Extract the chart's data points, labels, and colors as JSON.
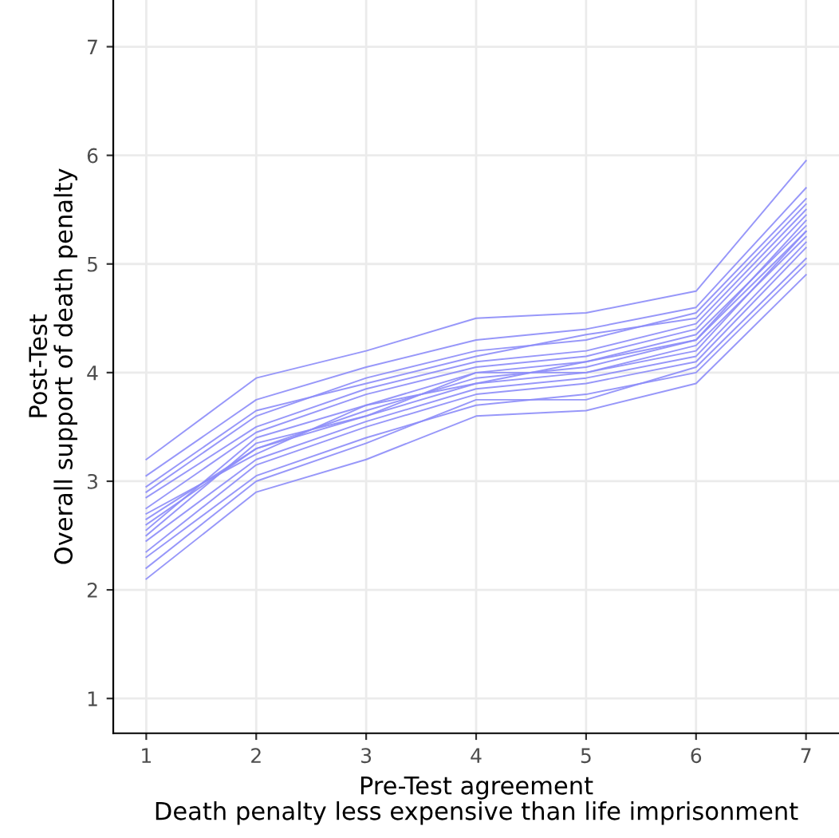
{
  "chart_data": {
    "type": "line",
    "xlabel": "Pre-Test agreement\nDeath penalty less expensive than life imprisonment",
    "ylabel": "Post-Test\nOverall support of death penalty",
    "x": [
      1,
      2,
      3,
      4,
      5,
      6,
      7
    ],
    "xlim": [
      0.7,
      7.3
    ],
    "xticks": [
      1,
      2,
      3,
      4,
      5,
      6,
      7
    ],
    "ylim": [
      0.68,
      7.43
    ],
    "yticks": [
      1,
      2,
      3,
      4,
      5,
      6,
      7
    ],
    "grid": true,
    "legend": false,
    "marker": "none",
    "line_style": "solid",
    "series": [
      {
        "color": "#8c8cf8",
        "values": [
          2.6,
          3.3,
          3.65,
          3.95,
          4.05,
          4.3,
          5.3
        ]
      },
      {
        "color": "#8c8cf8",
        "values": [
          2.1,
          2.9,
          3.2,
          3.6,
          3.65,
          3.9,
          4.9
        ]
      },
      {
        "color": "#8c8cf8",
        "values": [
          3.2,
          3.95,
          4.2,
          4.5,
          4.55,
          4.75,
          5.95
        ]
      },
      {
        "color": "#8c8cf8",
        "values": [
          2.3,
          3.05,
          3.4,
          3.7,
          3.8,
          4.0,
          5.0
        ]
      },
      {
        "color": "#8c8cf8",
        "values": [
          2.9,
          3.6,
          3.95,
          4.2,
          4.3,
          4.55,
          5.6
        ]
      },
      {
        "color": "#8c8cf8",
        "values": [
          2.45,
          3.2,
          3.55,
          3.85,
          3.95,
          4.15,
          5.2
        ]
      },
      {
        "color": "#8c8cf8",
        "values": [
          2.75,
          3.45,
          3.8,
          4.05,
          4.15,
          4.4,
          5.45
        ]
      },
      {
        "color": "#8c8cf8",
        "values": [
          2.5,
          3.35,
          3.6,
          3.9,
          4.0,
          4.25,
          5.25
        ]
      },
      {
        "color": "#8c8cf8",
        "values": [
          2.7,
          3.25,
          3.7,
          4.0,
          4.1,
          4.35,
          5.35
        ]
      },
      {
        "color": "#8c8cf8",
        "values": [
          3.05,
          3.75,
          4.05,
          4.3,
          4.4,
          4.6,
          5.7
        ]
      },
      {
        "color": "#8c8cf8",
        "values": [
          2.2,
          3.0,
          3.35,
          3.75,
          3.75,
          4.05,
          5.05
        ]
      },
      {
        "color": "#8c8cf8",
        "values": [
          2.55,
          3.4,
          3.7,
          3.9,
          4.1,
          4.3,
          5.4
        ]
      },
      {
        "color": "#8c8cf8",
        "values": [
          2.85,
          3.5,
          3.85,
          4.1,
          4.2,
          4.45,
          5.5
        ]
      },
      {
        "color": "#8c8cf8",
        "values": [
          2.35,
          3.15,
          3.5,
          3.8,
          3.9,
          4.1,
          5.15
        ]
      },
      {
        "color": "#8c8cf8",
        "values": [
          2.65,
          3.3,
          3.6,
          4.0,
          4.0,
          4.2,
          5.3
        ]
      },
      {
        "color": "#8c8cf8",
        "values": [
          2.95,
          3.65,
          3.9,
          4.15,
          4.35,
          4.5,
          5.55
        ]
      }
    ]
  }
}
